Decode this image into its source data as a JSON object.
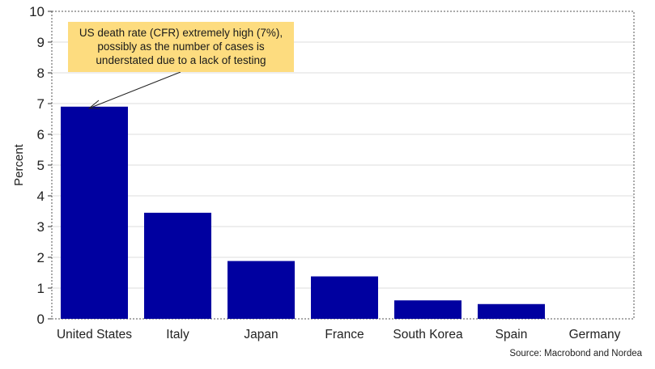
{
  "chart_data": {
    "type": "bar",
    "categories": [
      "United States",
      "Italy",
      "Japan",
      "France",
      "South Korea",
      "Spain",
      "Germany"
    ],
    "values": [
      6.9,
      3.45,
      1.88,
      1.38,
      0.6,
      0.48,
      0.0
    ],
    "ylabel": "Percent",
    "ylim": [
      0,
      10
    ],
    "yticks": [
      "0",
      "1",
      "2",
      "3",
      "4",
      "5",
      "6",
      "7",
      "8",
      "9",
      "10"
    ],
    "grid": true,
    "bar_color": "#0000a0",
    "annotation": {
      "lines": [
        "US death rate (CFR) extremely high (7%),",
        "possibly as the number of cases is",
        "understated due to a lack of testing"
      ],
      "color": "#fddc7f",
      "target_category": "United States"
    }
  },
  "source": "Source: Macrobond and Nordea"
}
